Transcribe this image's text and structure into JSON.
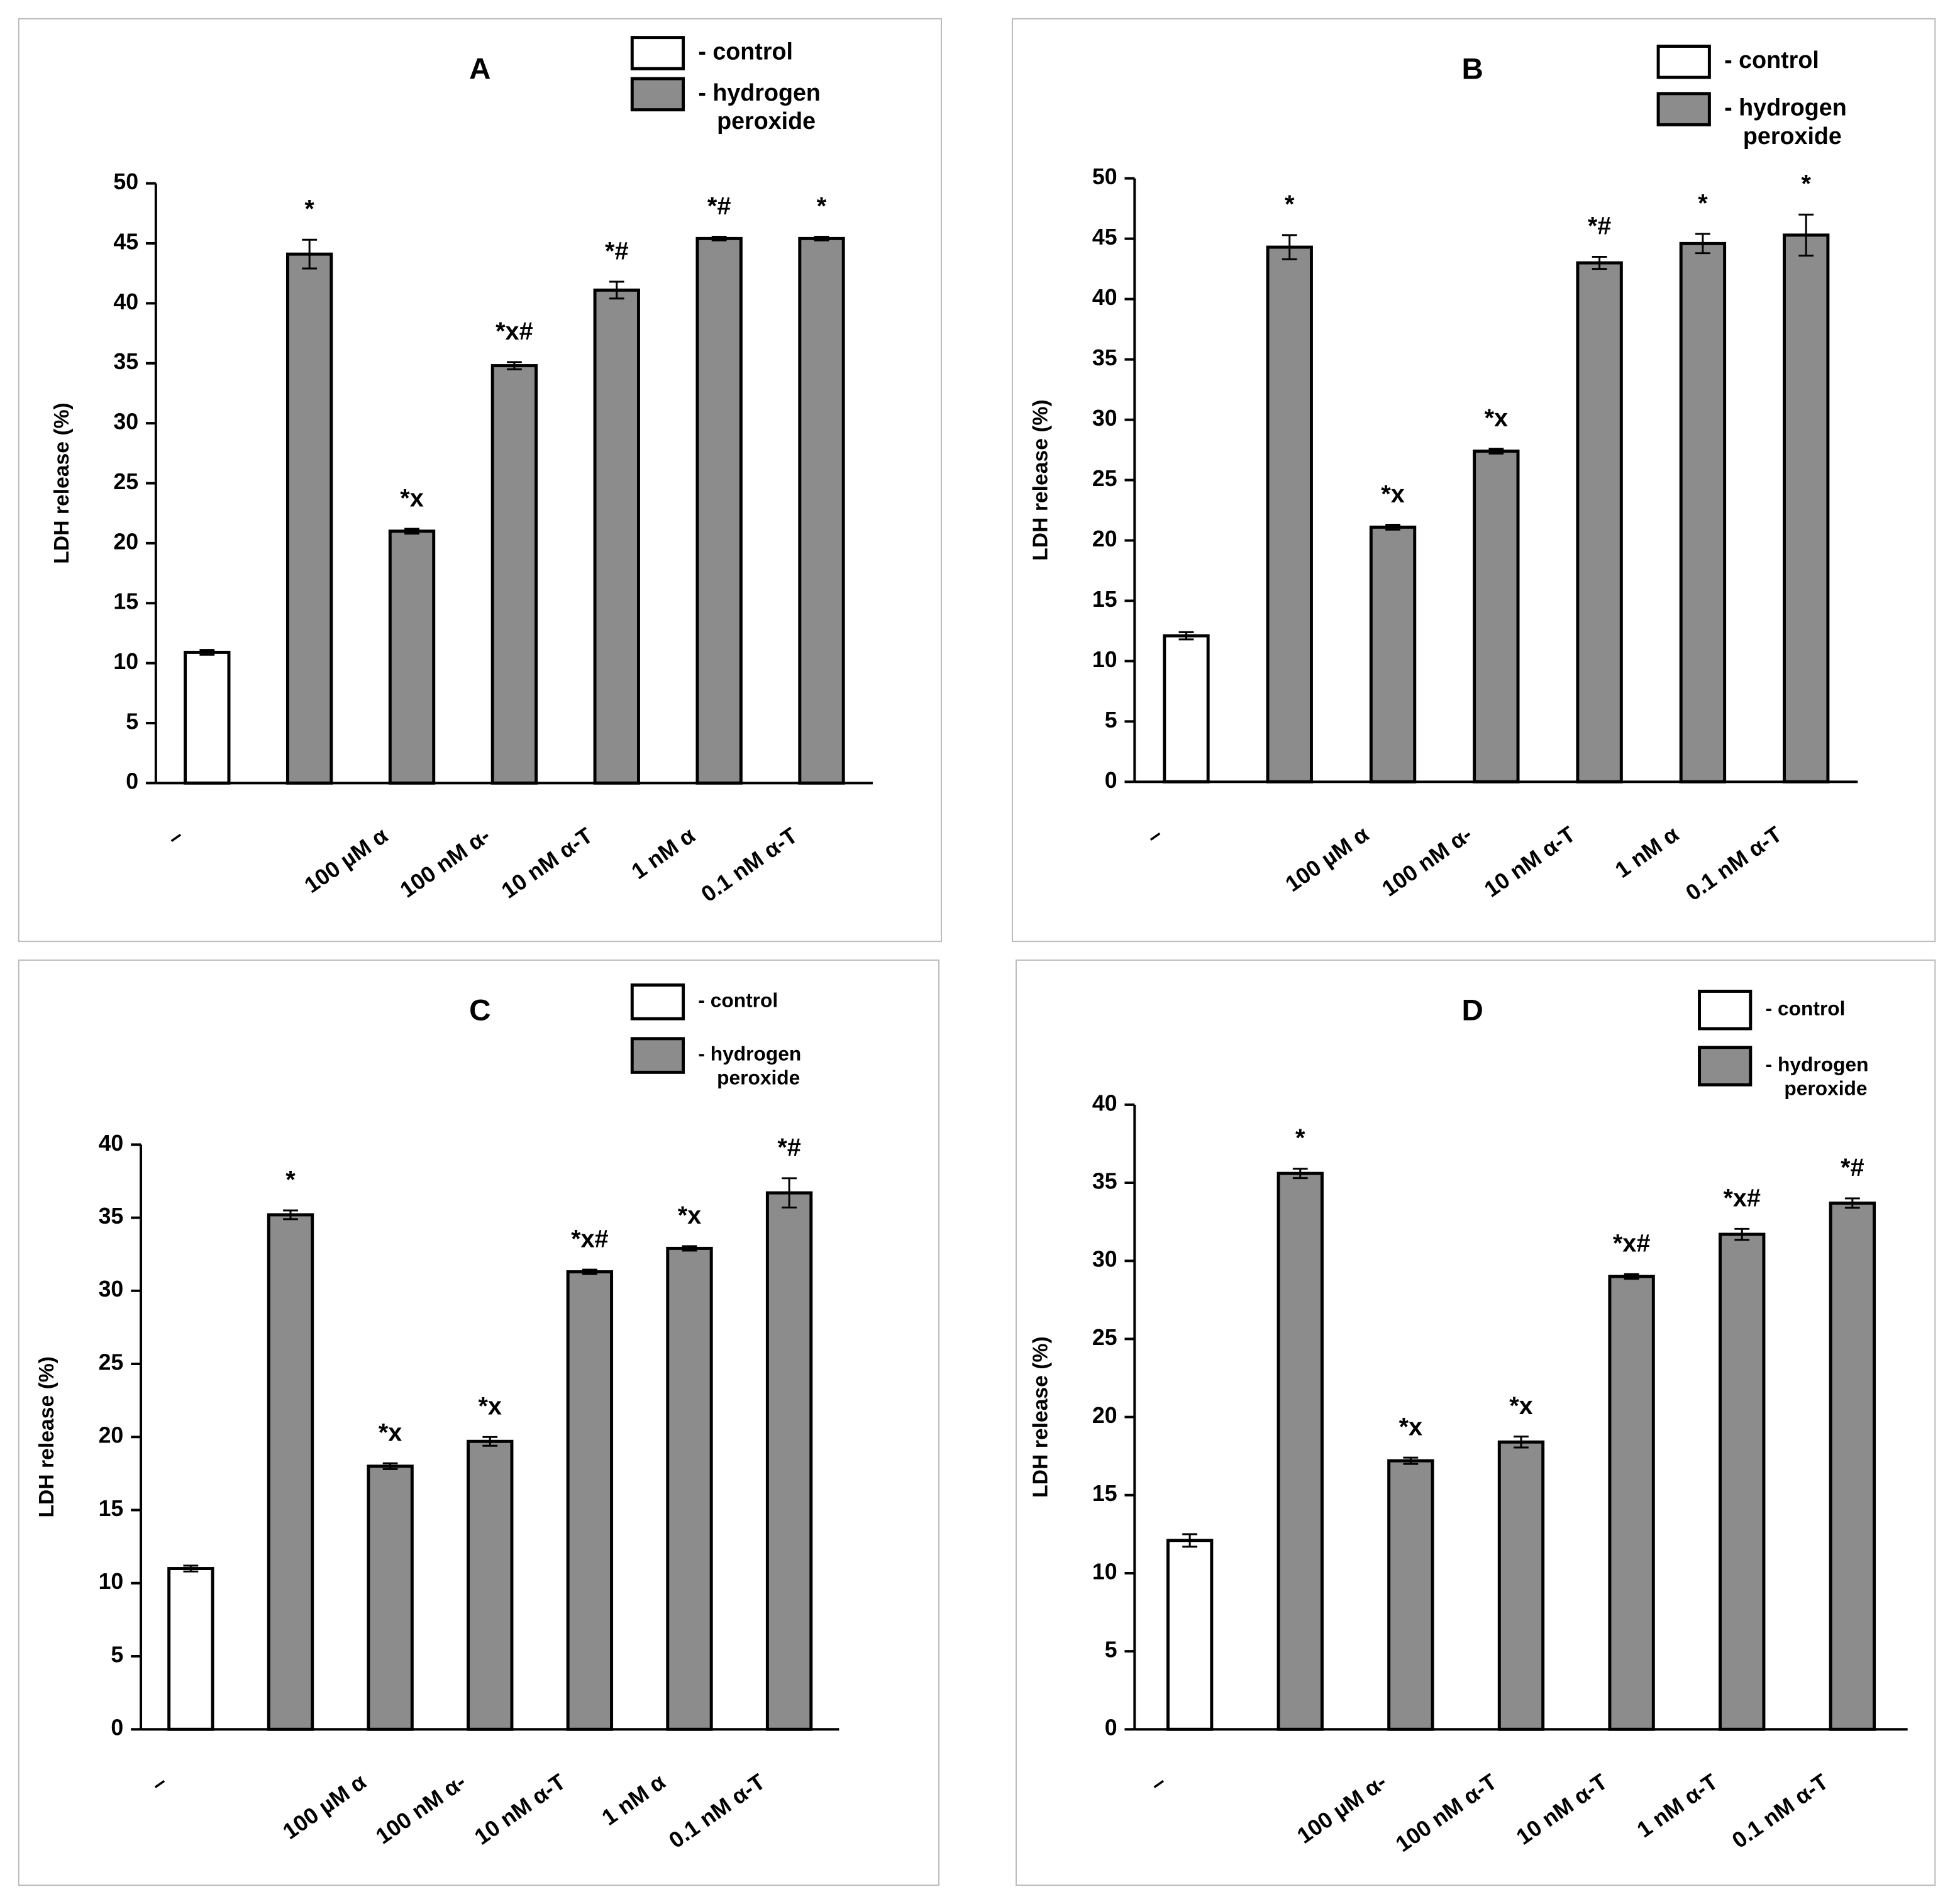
{
  "chart_data": [
    {
      "type": "bar",
      "title": "A",
      "y_label": "LDH release (%)",
      "categories": [
        "–",
        null,
        "100 µM α",
        "100 nM α-",
        "10 nM α-T",
        "1 nM α",
        "0.1 nM α-T"
      ],
      "series": [
        {
          "name": "- control",
          "color": "#ffffff",
          "values": [
            10.9,
            null,
            null,
            null,
            null,
            null,
            null
          ],
          "errors": [
            0.2,
            null,
            null,
            null,
            null,
            null,
            null
          ]
        },
        {
          "name": "- hydrogen peroxide",
          "color": "#8c8c8c",
          "values": [
            null,
            44.1,
            21.0,
            34.8,
            41.1,
            45.4,
            45.4
          ],
          "errors": [
            null,
            1.2,
            0.2,
            0.3,
            0.7,
            0.15,
            0.15
          ]
        }
      ],
      "annotations": [
        null,
        "*",
        "*x",
        "*x#",
        "*#",
        "*#",
        "*"
      ],
      "ylim": [
        0,
        50
      ],
      "yticks": [
        0,
        5,
        10,
        15,
        20,
        25,
        30,
        35,
        40,
        45,
        50
      ]
    },
    {
      "type": "bar",
      "title": "B",
      "y_label": "LDH release (%)",
      "categories": [
        "–",
        null,
        "100 µM α",
        "100 nM α-",
        "10 nM α-T",
        "1 nM α",
        "0.1 nM α-T"
      ],
      "series": [
        {
          "name": "- control",
          "color": "#ffffff",
          "values": [
            12.1,
            null,
            null,
            null,
            null,
            null,
            null
          ],
          "errors": [
            0.3,
            null,
            null,
            null,
            null,
            null,
            null
          ]
        },
        {
          "name": "- hydrogen peroxide",
          "color": "#8c8c8c",
          "values": [
            null,
            44.3,
            21.1,
            27.4,
            43.0,
            44.6,
            45.3
          ],
          "errors": [
            null,
            1.0,
            0.2,
            0.2,
            0.5,
            0.8,
            1.7
          ]
        }
      ],
      "annotations": [
        null,
        "*",
        "*x",
        "*x",
        "*#",
        "*",
        "*"
      ],
      "ylim": [
        0,
        50
      ],
      "yticks": [
        0,
        5,
        10,
        15,
        20,
        25,
        30,
        35,
        40,
        45,
        50
      ]
    },
    {
      "type": "bar",
      "title": "C",
      "y_label": "LDH release (%)",
      "categories": [
        "–",
        null,
        "100 µM α",
        "100 nM α-",
        "10 nM α-T",
        "1 nM α",
        "0.1 nM α-T"
      ],
      "series": [
        {
          "name": "- control",
          "color": "#ffffff",
          "values": [
            11.0,
            null,
            null,
            null,
            null,
            null,
            null
          ],
          "errors": [
            0.2,
            null,
            null,
            null,
            null,
            null,
            null
          ]
        },
        {
          "name": "- hydrogen peroxide",
          "color": "#8c8c8c",
          "values": [
            null,
            35.2,
            18.0,
            19.7,
            31.3,
            32.9,
            36.7
          ],
          "errors": [
            null,
            0.3,
            0.2,
            0.3,
            0.15,
            0.15,
            1.0
          ]
        }
      ],
      "annotations": [
        null,
        "*",
        "*x",
        "*x",
        "*x#",
        "*x",
        "*#"
      ],
      "ylim": [
        0,
        40
      ],
      "yticks": [
        0,
        5,
        10,
        15,
        20,
        25,
        30,
        35,
        40
      ]
    },
    {
      "type": "bar",
      "title": "D",
      "y_label": "LDH release (%)",
      "categories": [
        "–",
        null,
        "100 µM α-",
        "100 nM α-T",
        "10 nM α-T",
        "1 nM α-T",
        "0.1 nM α-T"
      ],
      "series": [
        {
          "name": "- control",
          "color": "#ffffff",
          "values": [
            12.1,
            null,
            null,
            null,
            null,
            null,
            null
          ],
          "errors": [
            0.4,
            null,
            null,
            null,
            null,
            null,
            null
          ]
        },
        {
          "name": "- hydrogen peroxide",
          "color": "#8c8c8c",
          "values": [
            null,
            35.6,
            17.2,
            18.4,
            29.0,
            31.7,
            33.7
          ],
          "errors": [
            null,
            0.3,
            0.2,
            0.35,
            0.15,
            0.35,
            0.3
          ]
        }
      ],
      "annotations": [
        null,
        "*",
        "*x",
        "*x",
        "*x#",
        "*x#",
        "*#"
      ],
      "ylim": [
        0,
        40
      ],
      "yticks": [
        0,
        5,
        10,
        15,
        20,
        25,
        30,
        35,
        40
      ]
    }
  ]
}
